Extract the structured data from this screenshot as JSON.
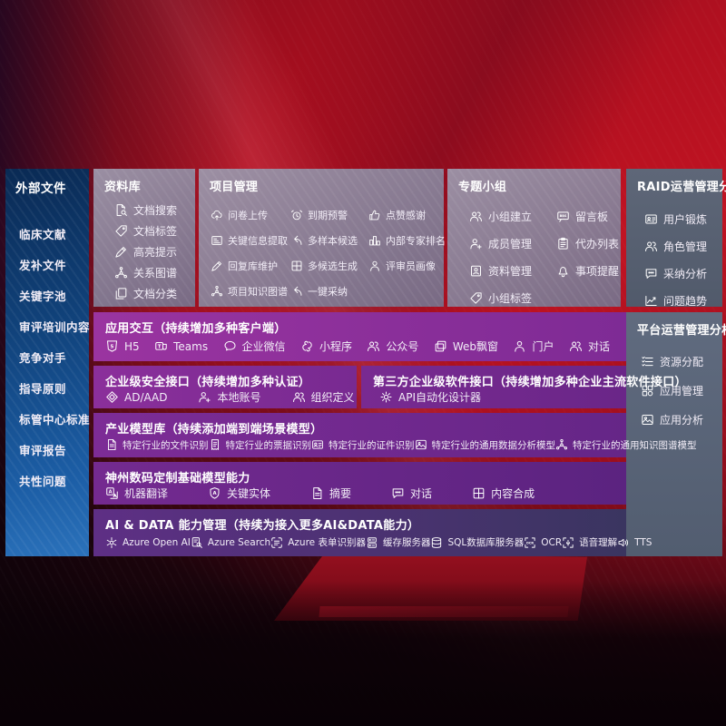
{
  "colors": {
    "background_red": "#b01020",
    "sidebar_blue": "#1c5ea6",
    "panel_gray": "#8a8095",
    "panel_slate": "#5d6778",
    "row_purple": "#7d2c96",
    "row_indigo": "#3a3560"
  },
  "sidebar": {
    "title": "外部文件",
    "items": [
      {
        "label": "临床文献"
      },
      {
        "label": "发补文件"
      },
      {
        "label": "关键字池"
      },
      {
        "label": "审评培训内容"
      },
      {
        "label": "竞争对手"
      },
      {
        "label": "指导原则"
      },
      {
        "label": "标管中心标准"
      },
      {
        "label": "审评报告"
      },
      {
        "label": "共性问题"
      }
    ]
  },
  "panels": {
    "library": {
      "title": "资料库",
      "items": [
        {
          "icon": "doc-search",
          "label": "文档搜索"
        },
        {
          "icon": "tag",
          "label": "文档标签"
        },
        {
          "icon": "pencil",
          "label": "高亮提示"
        },
        {
          "icon": "graph",
          "label": "关系图谱"
        },
        {
          "icon": "copy",
          "label": "文档分类"
        }
      ]
    },
    "project": {
      "title": "项目管理",
      "items": [
        {
          "icon": "cloud-up",
          "label": "问卷上传"
        },
        {
          "icon": "alarm",
          "label": "到期预警"
        },
        {
          "icon": "thumb",
          "label": "点赞感谢"
        },
        {
          "icon": "frame",
          "label": "关键信息提取"
        },
        {
          "icon": "reply",
          "label": "多样本候选"
        },
        {
          "icon": "rank",
          "label": "内部专家排名"
        },
        {
          "icon": "pencil",
          "label": "回复库维护"
        },
        {
          "icon": "puzzle",
          "label": "多候选生成"
        },
        {
          "icon": "person",
          "label": "评审员画像"
        },
        {
          "icon": "graph",
          "label": "项目知识图谱"
        },
        {
          "icon": "reply",
          "label": "一键采纳"
        }
      ]
    },
    "group": {
      "title": "专题小组",
      "items": [
        {
          "icon": "people",
          "label": "小组建立"
        },
        {
          "icon": "bbs",
          "label": "留言板"
        },
        {
          "icon": "person-add",
          "label": "成员管理"
        },
        {
          "icon": "clipboard",
          "label": "代办列表"
        },
        {
          "icon": "album",
          "label": "资料管理"
        },
        {
          "icon": "bell",
          "label": "事项提醒"
        },
        {
          "icon": "tag",
          "label": "小组标签"
        }
      ]
    },
    "raid": {
      "title": "RAID运营管理分析",
      "items": [
        {
          "icon": "id-card",
          "label": "用户锻炼"
        },
        {
          "icon": "people",
          "label": "角色管理"
        },
        {
          "icon": "chat",
          "label": "采纳分析"
        },
        {
          "icon": "trend",
          "label": "问题趋势"
        }
      ]
    },
    "platform": {
      "title": "平台运营管理分析",
      "items": [
        {
          "icon": "list",
          "label": "资源分配"
        },
        {
          "icon": "grid",
          "label": "应用管理"
        },
        {
          "icon": "image",
          "label": "应用分析"
        }
      ]
    }
  },
  "rows": {
    "interaction": {
      "title": "应用交互（持续增加多种客户端）",
      "items": [
        {
          "icon": "html5",
          "label": "H5"
        },
        {
          "icon": "teams",
          "label": "Teams"
        },
        {
          "icon": "bubble",
          "label": "企业微信"
        },
        {
          "icon": "mini",
          "label": "小程序"
        },
        {
          "icon": "people",
          "label": "公众号"
        },
        {
          "icon": "window",
          "label": "Web飘窗"
        },
        {
          "icon": "person",
          "label": "门户"
        },
        {
          "icon": "people",
          "label": "对话"
        }
      ]
    },
    "security": {
      "title": "企业级安全接口（持续增加多种认证）",
      "items": [
        {
          "icon": "diamond",
          "label": "AD/AAD"
        },
        {
          "icon": "person-add",
          "label": "本地账号"
        },
        {
          "icon": "people",
          "label": "组织定义"
        }
      ]
    },
    "thirdparty": {
      "title": "第三方企业级软件接口（持续增加多种企业主流软件接口）",
      "items": [
        {
          "icon": "gear",
          "label": "API自动化设计器"
        }
      ]
    },
    "models": {
      "title": "产业模型库（持续添加端到端场景模型）",
      "items": [
        {
          "icon": "doc",
          "label": "特定行业的文件识别"
        },
        {
          "icon": "receipt",
          "label": "特定行业的票据识别"
        },
        {
          "icon": "id-card",
          "label": "特定行业的证件识别"
        },
        {
          "icon": "image",
          "label": "特定行业的通用数据分析模型"
        },
        {
          "icon": "graph",
          "label": "特定行业的通用知识图谱模型"
        }
      ]
    },
    "base": {
      "title": "神州数码定制基础模型能力",
      "items": [
        {
          "icon": "translate",
          "label": "机器翻译"
        },
        {
          "icon": "shield-a",
          "label": "关键实体"
        },
        {
          "icon": "doc",
          "label": "摘要"
        },
        {
          "icon": "chat",
          "label": "对话"
        },
        {
          "icon": "puzzle",
          "label": "内容合成"
        }
      ]
    },
    "aidata": {
      "title": "AI & DATA 能力管理（持续为接入更多AI&DATA能力）",
      "items": [
        {
          "icon": "openai",
          "label": "Azure Open AI"
        },
        {
          "icon": "search-doc",
          "label": "Azure Search"
        },
        {
          "icon": "form",
          "label": "Azure 表单识别器"
        },
        {
          "icon": "server",
          "label": "缓存服务器"
        },
        {
          "icon": "db",
          "label": "SQL数据库服务器"
        },
        {
          "icon": "ocr",
          "label": "OCR"
        },
        {
          "icon": "voice",
          "label": "语音理解"
        },
        {
          "icon": "tts",
          "label": "TTS"
        }
      ]
    }
  }
}
